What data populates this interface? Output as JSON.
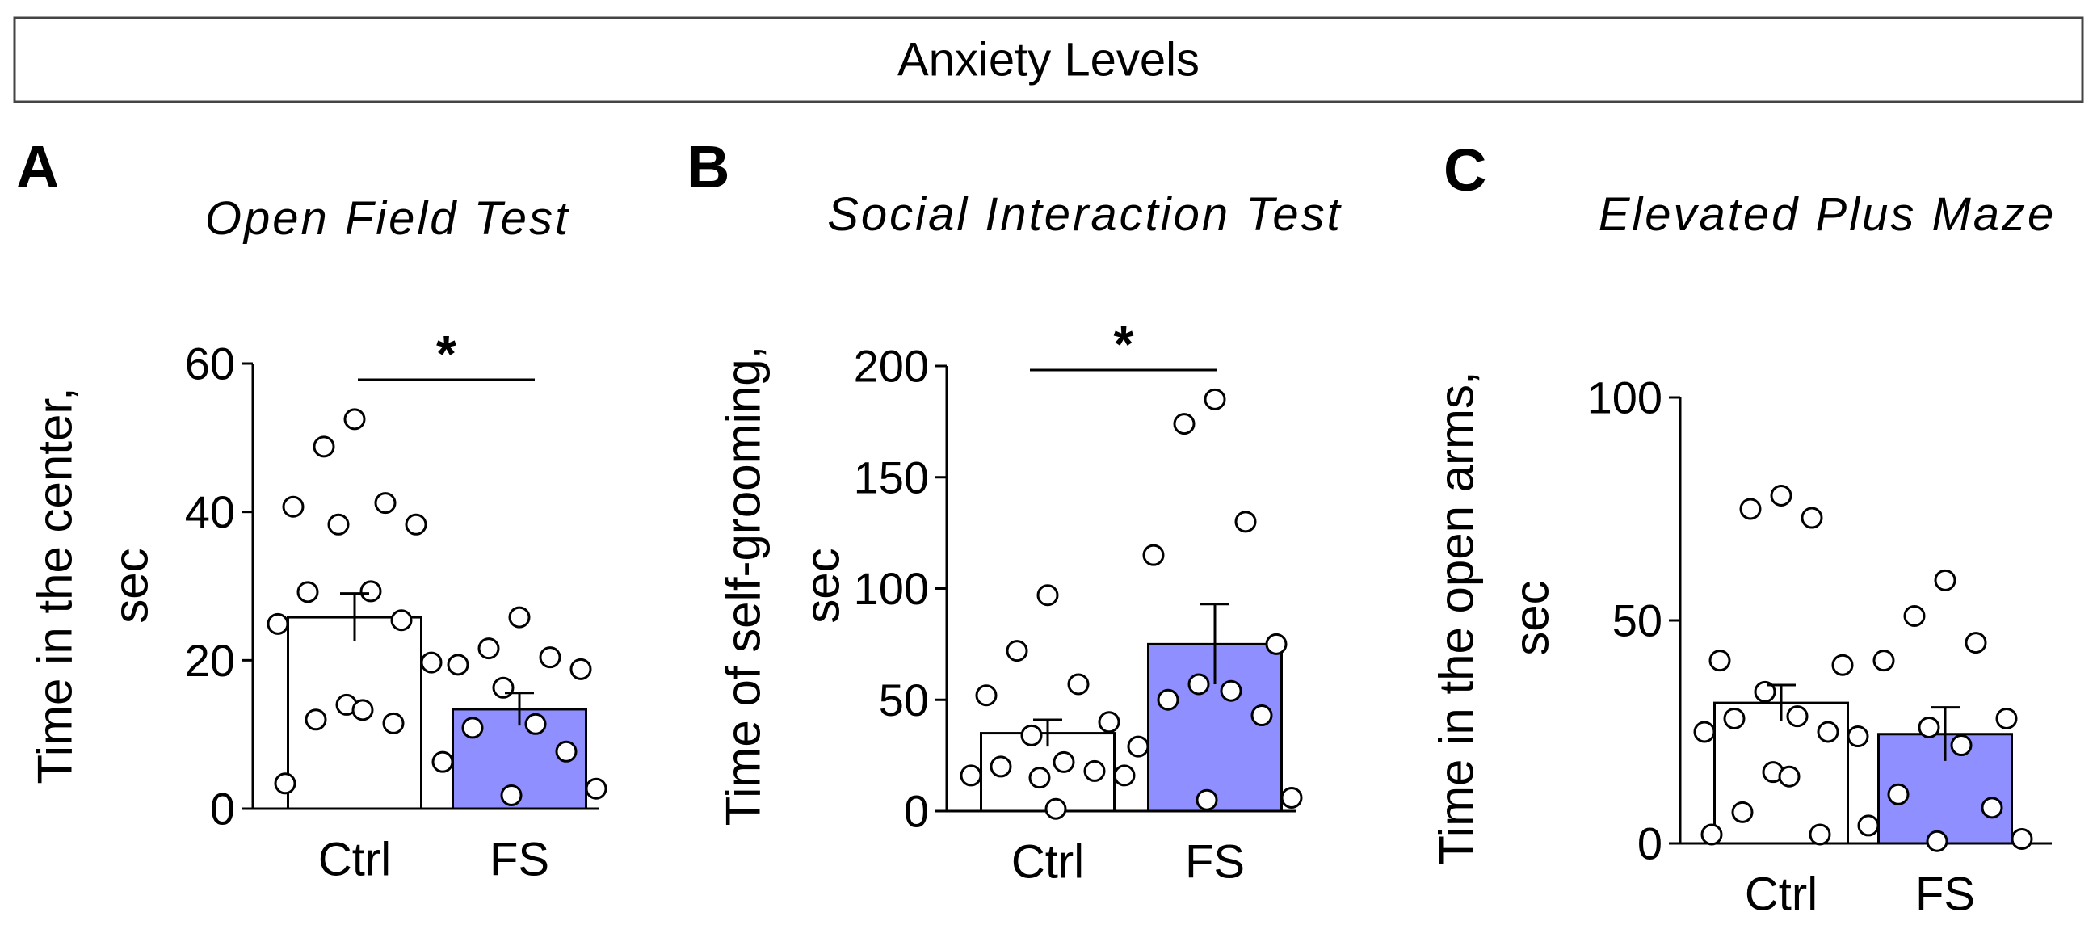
{
  "figure_title": "Anxiety Levels",
  "colors": {
    "ctrl_fill": "#ffffff",
    "fs_fill": "#8f8fff",
    "stroke": "#000000"
  },
  "chart_data": [
    {
      "type": "bar",
      "panel": "A",
      "title": "Open Field Test",
      "ylabel_line1": "Time in the center,",
      "ylabel_line2": "sec",
      "ylim": [
        0,
        60
      ],
      "yticks": [
        "0",
        "20",
        "40",
        "60"
      ],
      "categories": [
        "Ctrl",
        "FS"
      ],
      "values": [
        25.8,
        13.4
      ],
      "errors": [
        3.2,
        2.2
      ],
      "points": [
        [
          52.5,
          48.8,
          41.2,
          40.7,
          38.3,
          38.3,
          29.3,
          29.2,
          25.4,
          24.9,
          19.7,
          14.0,
          13.3,
          12.0,
          11.5,
          3.4
        ],
        [
          25.8,
          21.6,
          20.4,
          19.4,
          18.8,
          16.3,
          11.4,
          10.9,
          7.7,
          6.3,
          2.7,
          1.8
        ]
      ],
      "significance": "*"
    },
    {
      "type": "bar",
      "panel": "B",
      "title": "Social Interaction Test",
      "ylabel_line1": "Time of self-grooming,",
      "ylabel_line2": "sec",
      "ylim": [
        0,
        200
      ],
      "yticks": [
        "0",
        "50",
        "100",
        "150",
        "200"
      ],
      "categories": [
        "Ctrl",
        "FS"
      ],
      "values": [
        35,
        75
      ],
      "errors": [
        6,
        18
      ],
      "points": [
        [
          97,
          72,
          57,
          52,
          40,
          34,
          22,
          20,
          18,
          16,
          16,
          15,
          1
        ],
        [
          185,
          174,
          130,
          115,
          75,
          57,
          54,
          50,
          43,
          29,
          6,
          5
        ]
      ],
      "significance": "*"
    },
    {
      "type": "bar",
      "panel": "C",
      "title": "Elevated Plus Maze",
      "ylabel_line1": "Time in the open arms,",
      "ylabel_line2": "sec",
      "ylim": [
        0,
        100
      ],
      "yticks": [
        "0",
        "50",
        "100"
      ],
      "categories": [
        "Ctrl",
        "FS"
      ],
      "values": [
        31.5,
        24.5
      ],
      "errors": [
        4,
        6
      ],
      "points": [
        [
          78,
          75,
          73,
          41,
          40,
          34,
          28.5,
          28,
          25,
          25,
          24,
          16,
          15,
          7,
          2,
          2
        ],
        [
          59,
          51,
          45,
          41,
          28,
          26,
          22,
          11,
          8,
          4,
          1,
          0.5
        ]
      ],
      "significance": ""
    }
  ]
}
